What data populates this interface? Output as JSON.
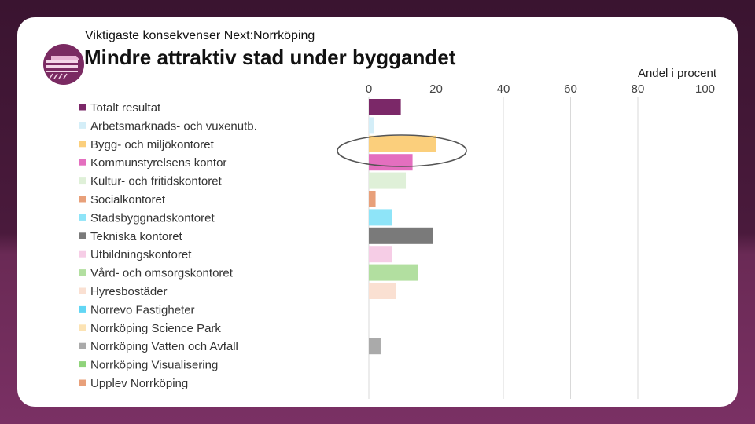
{
  "header": {
    "subtitle": "Viktigaste konsekvenser Next:Norrköping",
    "title": "Mindre attraktiv stad under byggandet"
  },
  "logo": {
    "icon": "next-norrkoping-logo-icon",
    "color": "#7a2a62"
  },
  "chart_data": {
    "type": "bar",
    "orientation": "horizontal",
    "title": "Mindre attraktiv stad under byggandet",
    "xlabel": "Andel i procent",
    "ylabel": "",
    "xlim": [
      0,
      100
    ],
    "xticks": [
      0,
      20,
      40,
      60,
      80,
      100
    ],
    "grid": true,
    "legend_position": "left",
    "categories": [
      "Totalt resultat",
      "Arbetsmarknads- och vuxenutb.",
      "Bygg- och miljökontoret",
      "Kommunstyrelsens kontor",
      "Kultur- och fritidskontoret",
      "Socialkontoret",
      "Stadsbyggnadskontoret",
      "Tekniska kontoret",
      "Utbildningskontoret",
      "Vård- och omsorgskontoret",
      "Hyresbostäder",
      "Norrevo Fastigheter",
      "Norrköping Science Park",
      "Norrköping Vatten och Avfall",
      "Norrköping Visualisering",
      "Upplev Norrköping"
    ],
    "values": [
      9.5,
      1.5,
      20,
      13,
      11,
      2,
      7,
      19,
      7,
      14.5,
      8,
      0,
      0,
      3.5,
      0,
      0
    ],
    "colors": [
      "#7b2868",
      "#d4eef8",
      "#fbcf7c",
      "#e46fbf",
      "#dff0d8",
      "#e8a07a",
      "#8ee4f8",
      "#7a7a7a",
      "#f6cde6",
      "#b2dfa0",
      "#fae0d2",
      "#62d6f4",
      "#fce3b4",
      "#aaaaaa",
      "#8fd37a",
      "#e8a07a"
    ],
    "highlight": "Bygg- och miljökontoret"
  }
}
